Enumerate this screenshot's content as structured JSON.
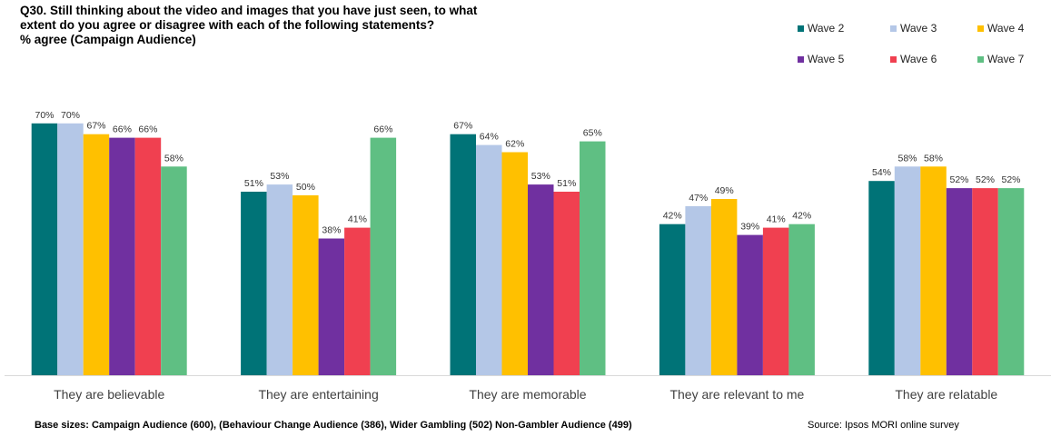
{
  "title_lines": [
    "Q30. Still thinking about the video and images that you have just seen, to what",
    "extent do you agree or disagree with each of the following statements?",
    "% agree (Campaign Audience)"
  ],
  "footer": {
    "base_sizes": "Base sizes: Campaign Audience (600), (Behaviour Change Audience (386),  Wider Gambling (502) Non-Gambler Audience (499)",
    "source": "Source: Ipsos MORI online survey"
  },
  "chart_data": {
    "type": "bar",
    "title": "Q30. Still thinking about the video and images that you have just seen, to what extent do you agree or disagree with each of the following statements? % agree (Campaign Audience)",
    "categories": [
      "They are believable",
      "They are entertaining",
      "They are memorable",
      "They are relevant to me",
      "They are relatable"
    ],
    "ylim": [
      0,
      100
    ],
    "unit": "%",
    "grid": false,
    "legend_position": "top-right",
    "series": [
      {
        "name": "Wave 2",
        "color": "#007377",
        "values": [
          70,
          51,
          67,
          42,
          54
        ]
      },
      {
        "name": "Wave 3",
        "color": "#B4C7E7",
        "values": [
          70,
          53,
          64,
          47,
          58
        ]
      },
      {
        "name": "Wave 4",
        "color": "#FFC000",
        "values": [
          67,
          50,
          62,
          49,
          58
        ]
      },
      {
        "name": "Wave 5",
        "color": "#7030A0",
        "values": [
          66,
          38,
          53,
          39,
          52
        ]
      },
      {
        "name": "Wave 6",
        "color": "#F04050",
        "values": [
          66,
          41,
          51,
          41,
          52
        ]
      },
      {
        "name": "Wave 7",
        "color": "#5FBF83",
        "values": [
          58,
          66,
          65,
          42,
          52
        ]
      }
    ]
  }
}
